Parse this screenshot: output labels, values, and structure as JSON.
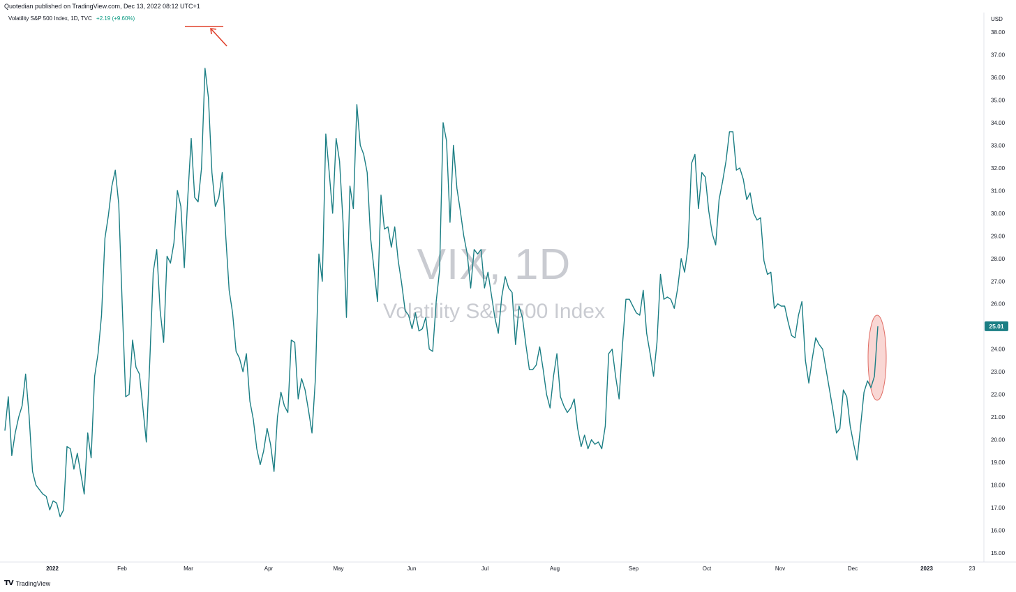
{
  "header": {
    "publisher_line": "Quotedian published on TradingView.com, Dec 13, 2022 08:12 UTC+1"
  },
  "legend": {
    "label": "Volatility S&P 500 Index, 1D, TVC",
    "change": "+2.19 (+9.60%)"
  },
  "watermark": {
    "symbol": "VIX, 1D",
    "description": "Volatility S&P 500 Index"
  },
  "footer": {
    "logo_text": "TradingView"
  },
  "colors": {
    "line": "#1b7e84",
    "price_label_bg": "#1b7e84",
    "annotation_red": "#e0402c",
    "ellipse_fill": "#f7c9c5",
    "ellipse_stroke": "#e06e66"
  },
  "chart_data": {
    "type": "line",
    "currency": "USD",
    "last_value_label": "25.01",
    "series": [
      {
        "values": [
          20.4,
          21.9,
          19.3,
          20.3,
          21.0,
          21.5,
          22.9,
          21.1,
          18.6,
          18.0,
          17.8,
          17.6,
          17.5,
          16.9,
          17.3,
          17.2,
          16.6,
          16.9,
          19.7,
          19.6,
          18.7,
          19.4,
          18.5,
          17.6,
          20.3,
          19.2,
          22.8,
          23.8,
          25.5,
          28.9,
          29.9,
          31.2,
          31.9,
          30.4,
          26.0,
          21.9,
          22.0,
          24.4,
          23.2,
          22.9,
          21.4,
          19.9,
          23.5,
          27.4,
          28.4,
          25.7,
          24.3,
          28.1,
          27.8,
          28.7,
          31.0,
          30.3,
          27.6,
          30.7,
          33.3,
          30.7,
          30.5,
          32.0,
          36.4,
          35.1,
          31.8,
          30.3,
          30.7,
          31.8,
          29.0,
          26.6,
          25.6,
          23.9,
          23.6,
          23.0,
          23.8,
          21.7,
          20.9,
          19.6,
          18.9,
          19.5,
          20.5,
          19.8,
          18.6,
          21.0,
          22.1,
          21.5,
          21.2,
          24.4,
          24.3,
          21.8,
          22.7,
          22.2,
          21.3,
          20.3,
          22.7,
          28.2,
          27.0,
          33.5,
          31.8,
          30.0,
          33.3,
          32.3,
          29.6,
          25.4,
          31.2,
          30.2,
          34.8,
          33.0,
          32.6,
          31.8,
          28.9,
          27.5,
          26.1,
          30.8,
          29.3,
          29.4,
          28.5,
          29.4,
          27.9,
          26.9,
          25.7,
          25.5,
          24.9,
          25.6,
          24.8,
          24.9,
          25.4,
          24.0,
          23.9,
          26.1,
          27.5,
          34.0,
          33.2,
          29.6,
          33.0,
          31.1,
          30.1,
          29.0,
          28.2,
          26.7,
          28.4,
          28.2,
          28.4,
          26.7,
          27.4,
          26.4,
          25.4,
          24.7,
          26.3,
          27.2,
          26.7,
          26.5,
          24.2,
          25.9,
          25.4,
          24.2,
          23.1,
          23.1,
          23.3,
          24.1,
          23.1,
          22.0,
          21.4,
          22.8,
          23.8,
          21.9,
          21.5,
          21.2,
          21.4,
          21.8,
          20.5,
          19.7,
          20.2,
          19.6,
          20.0,
          19.8,
          19.9,
          19.6,
          20.6,
          23.8,
          24.0,
          22.8,
          21.8,
          24.2,
          26.2,
          26.2,
          25.9,
          25.6,
          25.5,
          26.6,
          24.7,
          23.8,
          22.8,
          24.3,
          27.3,
          26.2,
          26.3,
          26.2,
          25.8,
          26.7,
          28.0,
          27.4,
          28.5,
          32.2,
          32.6,
          30.2,
          31.8,
          31.6,
          30.1,
          29.1,
          28.6,
          30.6,
          31.4,
          32.3,
          33.6,
          33.6,
          31.9,
          32.0,
          31.5,
          30.6,
          30.9,
          30.0,
          29.7,
          29.8,
          27.9,
          27.3,
          27.4,
          25.8,
          26.0,
          25.9,
          25.9,
          25.2,
          24.6,
          24.5,
          25.5,
          26.1,
          23.5,
          22.5,
          23.6,
          24.5,
          24.2,
          24.0,
          23.1,
          22.2,
          21.3,
          20.3,
          20.5,
          22.2,
          21.9,
          20.6,
          19.8,
          19.1,
          20.6,
          22.1,
          22.6,
          22.3,
          22.8,
          25.01
        ]
      }
    ],
    "x_tick_labels": [
      "2022",
      "Feb",
      "Mar",
      "Apr",
      "May",
      "Jun",
      "Jul",
      "Aug",
      "Sep",
      "Oct",
      "Nov",
      "Dec",
      "2023",
      "23"
    ],
    "y_tick_labels": [
      "15.00",
      "16.00",
      "17.00",
      "18.00",
      "19.00",
      "20.00",
      "21.00",
      "22.00",
      "23.00",
      "24.00",
      "25.00",
      "26.00",
      "27.00",
      "28.00",
      "29.00",
      "30.00",
      "31.00",
      "32.00",
      "33.00",
      "34.00",
      "35.00",
      "36.00",
      "37.00",
      "38.00"
    ],
    "ylim": [
      15,
      38
    ]
  }
}
